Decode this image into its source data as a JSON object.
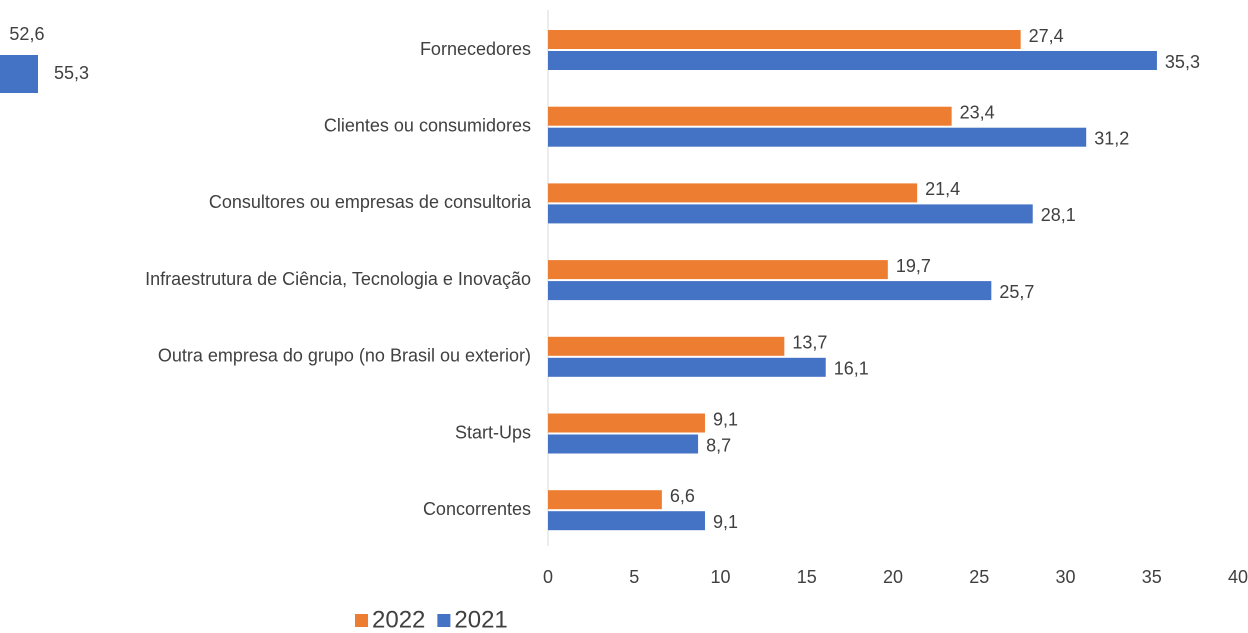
{
  "chart_data": [
    {
      "type": "bar",
      "orientation": "horizontal",
      "categories": [
        "Fornecedores",
        "Clientes ou consumidores",
        "Consultores ou empresas de consultoria",
        "Infraestrutura de Ciência, Tecnologia e Inovação",
        "Outra empresa do grupo (no Brasil ou exterior)",
        "Start-Ups",
        "Concorrentes"
      ],
      "series": [
        {
          "name": "2022",
          "color": "#ed7d31",
          "values": [
            27.4,
            23.4,
            21.4,
            19.7,
            13.7,
            9.1,
            6.6
          ],
          "value_labels": [
            "27,4",
            "23,4",
            "21,4",
            "19,7",
            "13,7",
            "9,1",
            "6,6"
          ]
        },
        {
          "name": "2021",
          "color": "#4472c4",
          "values": [
            35.3,
            31.2,
            28.1,
            25.7,
            16.1,
            8.7,
            9.1
          ],
          "value_labels": [
            "35,3",
            "31,2",
            "28,1",
            "25,7",
            "16,1",
            "8,7",
            "9,1"
          ]
        }
      ],
      "xlim": [
        0,
        40
      ],
      "xticks": [
        0,
        5,
        10,
        15,
        20,
        25,
        30,
        35,
        40
      ],
      "legend": "bottom"
    },
    {
      "type": "bar",
      "orientation": "horizontal",
      "series": [
        {
          "color": "#ed7d31",
          "values": [
            52.6
          ],
          "value_labels": [
            "52,6"
          ]
        },
        {
          "color": "#4472c4",
          "values": [
            55.3
          ],
          "value_labels": [
            "55,3"
          ]
        }
      ]
    }
  ]
}
